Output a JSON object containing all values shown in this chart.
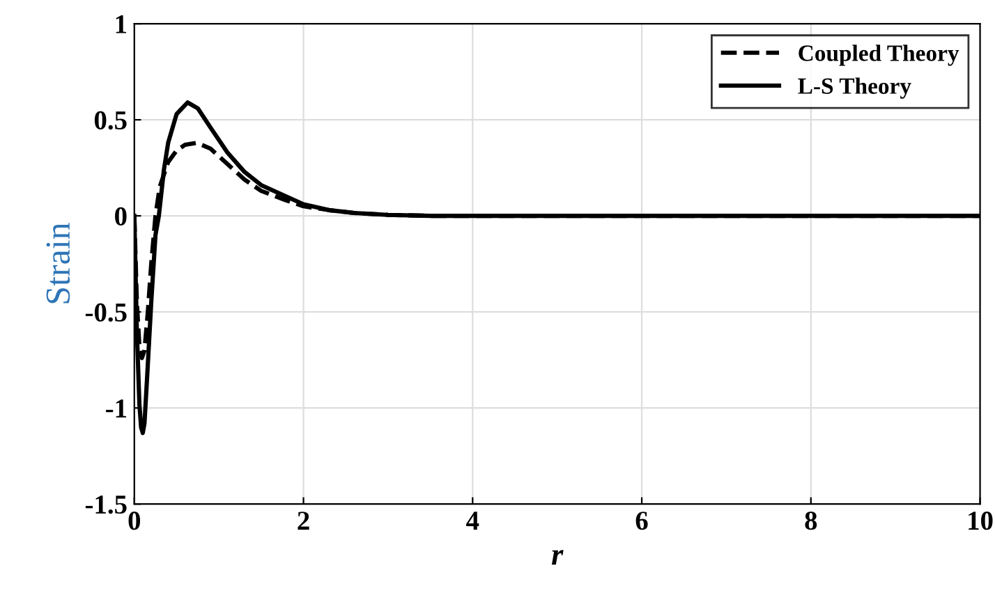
{
  "chart_data": {
    "type": "line",
    "xlabel": "r",
    "ylabel": "Strain",
    "xlim": [
      0,
      10
    ],
    "ylim": [
      -1.5,
      1
    ],
    "xticks": [
      0,
      2,
      4,
      6,
      8,
      10
    ],
    "yticks": [
      -1.5,
      -1,
      -0.5,
      0,
      0.5,
      1
    ],
    "grid": true,
    "legend": "top right",
    "series": [
      {
        "name": "Coupled Theory",
        "color": "#000000",
        "line_style": "dashed",
        "x": [
          0,
          0.03,
          0.06,
          0.09,
          0.12,
          0.16,
          0.2,
          0.25,
          0.3,
          0.4,
          0.5,
          0.6,
          0.74,
          0.9,
          1.1,
          1.3,
          1.5,
          1.8,
          2,
          2.3,
          2.6,
          3,
          3.5,
          4,
          5,
          6,
          8,
          10
        ],
        "values": [
          0,
          -0.45,
          -0.68,
          -0.74,
          -0.7,
          -0.5,
          -0.25,
          0,
          0.15,
          0.28,
          0.34,
          0.37,
          0.38,
          0.35,
          0.27,
          0.19,
          0.13,
          0.08,
          0.05,
          0.03,
          0.015,
          0.005,
          0,
          0,
          0,
          0,
          0,
          0
        ]
      },
      {
        "name": "L-S Theory",
        "color": "#000000",
        "line_style": "solid",
        "x": [
          0,
          0.03,
          0.06,
          0.08,
          0.1,
          0.12,
          0.15,
          0.2,
          0.25,
          0.29,
          0.35,
          0.4,
          0.5,
          0.63,
          0.75,
          0.9,
          1.1,
          1.3,
          1.5,
          1.8,
          2,
          2.3,
          2.6,
          3,
          3.5,
          4,
          5,
          6,
          8,
          10
        ],
        "values": [
          0,
          -0.6,
          -0.98,
          -1.1,
          -1.13,
          -1.08,
          -0.85,
          -0.45,
          -0.1,
          0,
          0.24,
          0.38,
          0.53,
          0.59,
          0.56,
          0.46,
          0.33,
          0.23,
          0.16,
          0.1,
          0.06,
          0.03,
          0.015,
          0.005,
          0,
          0,
          0,
          0,
          0,
          0
        ]
      }
    ]
  }
}
